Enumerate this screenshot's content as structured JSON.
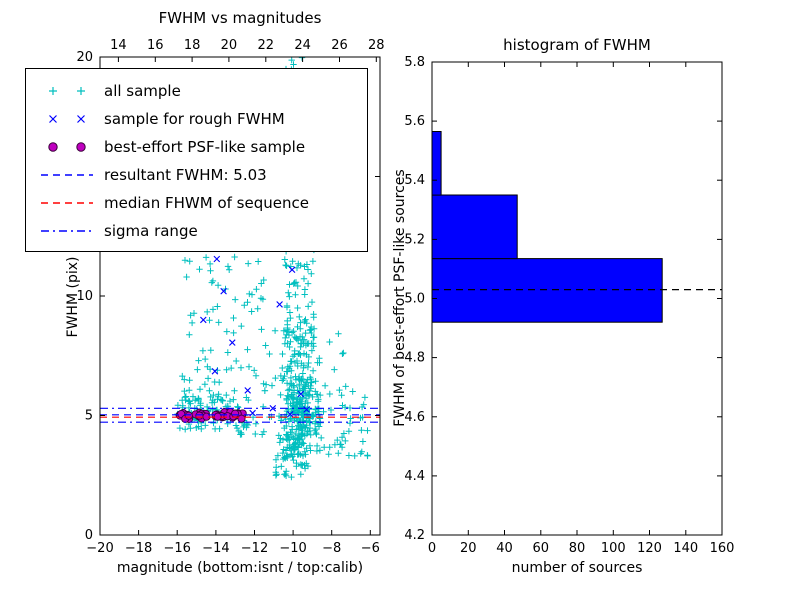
{
  "figure": {
    "background": "#ffffff"
  },
  "colors": {
    "all_sample": "#00bfbf",
    "rough_fwhm": "#0000ff",
    "psf_like_fill": "#bf00bf",
    "psf_like_edge": "#3a003a",
    "resultant_line": "#0000ff",
    "median_line": "#ff0000",
    "sigma_line": "#0000ff",
    "hist_fill": "#0000ff",
    "axis": "#000000"
  },
  "chart_data": [
    {
      "type": "scatter",
      "title": "FWHM vs magnitudes",
      "xlabel": "magnitude (bottom:isnt / top:calib)",
      "ylabel": "FWHM (pix)",
      "xlim": [
        -20,
        -5.5
      ],
      "top_xlim": [
        13.0,
        28.2
      ],
      "ylim": [
        0,
        20
      ],
      "xticks": [
        -20,
        -18,
        -16,
        -14,
        -12,
        -10,
        -8,
        -6
      ],
      "top_xticks": [
        14,
        16,
        18,
        20,
        22,
        24,
        26,
        28
      ],
      "yticks": [
        0,
        5,
        10,
        15,
        20
      ],
      "grid": false,
      "legend_position": "upper-left",
      "legend": [
        {
          "label": "all sample",
          "type": "marker",
          "marker": "plus",
          "color": "#00bfbf"
        },
        {
          "label": "sample for rough FWHM",
          "type": "marker",
          "marker": "x",
          "color": "#0000ff"
        },
        {
          "label": "best-effort PSF-like sample",
          "type": "marker",
          "marker": "circle",
          "color": "#bf00bf"
        },
        {
          "label": "resultant FWHM: 5.03",
          "type": "line",
          "style": "dashed",
          "color": "#0000ff"
        },
        {
          "label": "median FHWM of sequence",
          "type": "line",
          "style": "dashed",
          "color": "#ff0000"
        },
        {
          "label": "sigma range",
          "type": "line",
          "style": "dashdot",
          "color": "#0000ff"
        }
      ],
      "hlines": [
        {
          "name": "resultant-fwhm",
          "y": 5.03,
          "style": "dashed",
          "color": "#0000ff"
        },
        {
          "name": "median-fwhm",
          "y": 4.93,
          "style": "dashed",
          "color": "#ff0000"
        },
        {
          "name": "sigma-upper",
          "y": 5.3,
          "style": "dashdot",
          "color": "#0000ff"
        },
        {
          "name": "sigma-lower",
          "y": 4.72,
          "style": "dashdot",
          "color": "#0000ff"
        }
      ],
      "series": [
        {
          "name": "all sample",
          "marker": "plus",
          "color": "#00bfbf",
          "clusters": [
            {
              "n": 80,
              "dist": "uniform",
              "x": [
                -16.0,
                -12.3
              ],
              "y": [
                4.4,
                5.8
              ]
            },
            {
              "n": 70,
              "dist": "ybottom",
              "x": [
                -15.8,
                -12.9
              ],
              "y": [
                5.6,
                13.6
              ]
            },
            {
              "n": 45,
              "dist": "ybottom",
              "x": [
                -12.9,
                -10.9
              ],
              "y": [
                4.2,
                12.0
              ]
            },
            {
              "n": 300,
              "dist": "gauss",
              "x": [
                -10.8,
                -8.6
              ],
              "y": [
                3.2,
                8.2
              ],
              "cx": -9.7,
              "sx": 0.55,
              "cy": 5.1,
              "sy": 1.25
            },
            {
              "n": 130,
              "dist": "ybottom",
              "x": [
                -10.5,
                -8.9
              ],
              "y": [
                8.0,
                20.0
              ]
            },
            {
              "n": 30,
              "dist": "uniform",
              "x": [
                -10.9,
                -9.2
              ],
              "y": [
                2.4,
                3.4
              ]
            },
            {
              "n": 45,
              "dist": "uniform",
              "x": [
                -8.7,
                -6.1
              ],
              "y": [
                3.2,
                6.3
              ]
            },
            {
              "n": 10,
              "dist": "uniform",
              "x": [
                -10.1,
                -9.4
              ],
              "y": [
                18.3,
                20.0
              ]
            },
            {
              "n": 8,
              "dist": "uniform",
              "x": [
                -9.0,
                -7.2
              ],
              "y": [
                6.4,
                9.0
              ]
            }
          ]
        },
        {
          "name": "sample for rough FWHM",
          "marker": "x",
          "color": "#0000ff",
          "points": [
            [
              -14.35,
              12.65
            ],
            [
              -13.95,
              11.55
            ],
            [
              -13.6,
              10.2
            ],
            [
              -14.65,
              9.0
            ],
            [
              -13.15,
              8.05
            ],
            [
              -14.05,
              6.85
            ],
            [
              -12.35,
              6.05
            ],
            [
              -10.45,
              12.3
            ],
            [
              -10.05,
              11.1
            ],
            [
              -10.7,
              9.65
            ],
            [
              -9.6,
              5.9
            ],
            [
              -13.45,
              5.2
            ],
            [
              -12.1,
              5.1
            ],
            [
              -11.05,
              5.3
            ],
            [
              -10.15,
              5.05
            ],
            [
              -9.3,
              5.25
            ]
          ]
        },
        {
          "name": "best-effort PSF-like sample",
          "marker": "circle",
          "color": "#bf00bf",
          "edge_color": "#3a003a",
          "clusters": [
            {
              "n": 48,
              "dist": "band",
              "x": [
                -15.9,
                -12.55
              ],
              "y": [
                4.8,
                5.2
              ],
              "cy": 5.0,
              "sy": 0.07
            }
          ]
        }
      ]
    },
    {
      "type": "barh",
      "title": "histogram of FWHM",
      "xlabel": "number of sources",
      "ylabel": "FWHM of best-effort PSF-like sources",
      "xlim": [
        0,
        160
      ],
      "ylim": [
        4.2,
        5.8
      ],
      "xticks": [
        0,
        20,
        40,
        60,
        80,
        100,
        120,
        140,
        160
      ],
      "yticks": [
        4.2,
        4.4,
        4.6,
        4.8,
        5.0,
        5.2,
        5.4,
        5.6,
        5.8
      ],
      "grid": false,
      "bin_edges": [
        4.92,
        5.135,
        5.35,
        5.565
      ],
      "counts": [
        127,
        47,
        5
      ],
      "bar_color": "#0000ff",
      "bar_edge_color": "#000000",
      "hline": {
        "name": "resultant-fwhm",
        "y": 5.03,
        "style": "dashed",
        "color": "#000000"
      }
    }
  ]
}
